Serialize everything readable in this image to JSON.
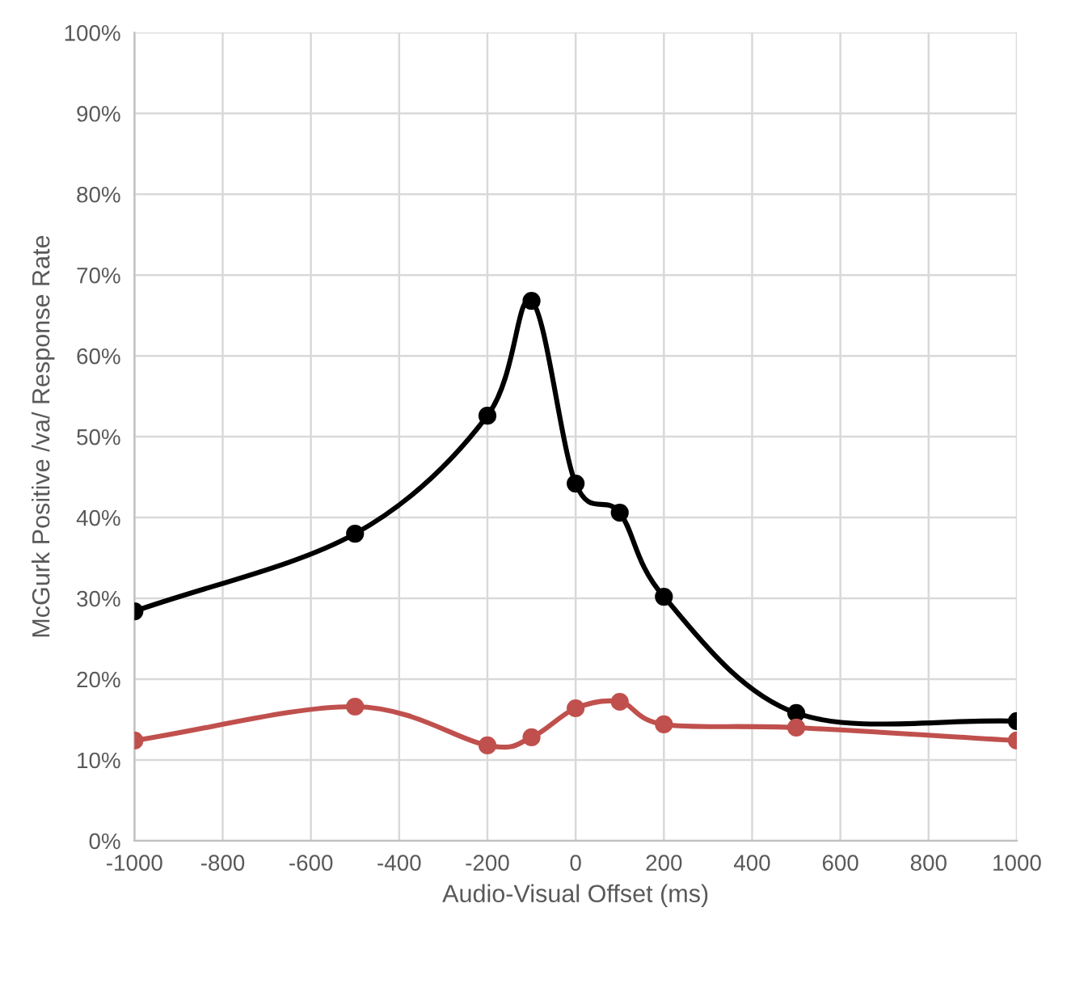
{
  "chart_data": {
    "type": "line",
    "xlabel": "Audio-Visual Offset (ms)",
    "ylabel": "McGurk Positive /va/ Response Rate",
    "x": [
      -1000,
      -500,
      -200,
      -100,
      0,
      100,
      200,
      500,
      1000
    ],
    "series": [
      {
        "color": "#000000",
        "values": [
          28.4,
          38,
          52.6,
          66.8,
          44.2,
          40.6,
          30.2,
          15.8,
          14.8
        ]
      },
      {
        "color": "#c0504d",
        "values": [
          12.4,
          16.6,
          11.8,
          12.8,
          16.4,
          17.2,
          14.4,
          14,
          12.4
        ]
      }
    ],
    "xlim": [
      -1000,
      1000
    ],
    "xticks": [
      -1000,
      -800,
      -600,
      -400,
      -200,
      0,
      200,
      400,
      600,
      800,
      1000
    ],
    "ylim": [
      0,
      100
    ],
    "yticks": [
      {
        "value": 0,
        "label": "0%"
      },
      {
        "value": 10,
        "label": "10%"
      },
      {
        "value": 20,
        "label": "20%"
      },
      {
        "value": 30,
        "label": "30%"
      },
      {
        "value": 40,
        "label": "40%"
      },
      {
        "value": 50,
        "label": "50%"
      },
      {
        "value": 60,
        "label": "60%"
      },
      {
        "value": 70,
        "label": "70%"
      },
      {
        "value": 80,
        "label": "80%"
      },
      {
        "value": 90,
        "label": "90%"
      },
      {
        "value": 100,
        "label": "100%"
      }
    ],
    "grid": true,
    "marker": "circle",
    "line_style": "solid",
    "legend": false
  }
}
